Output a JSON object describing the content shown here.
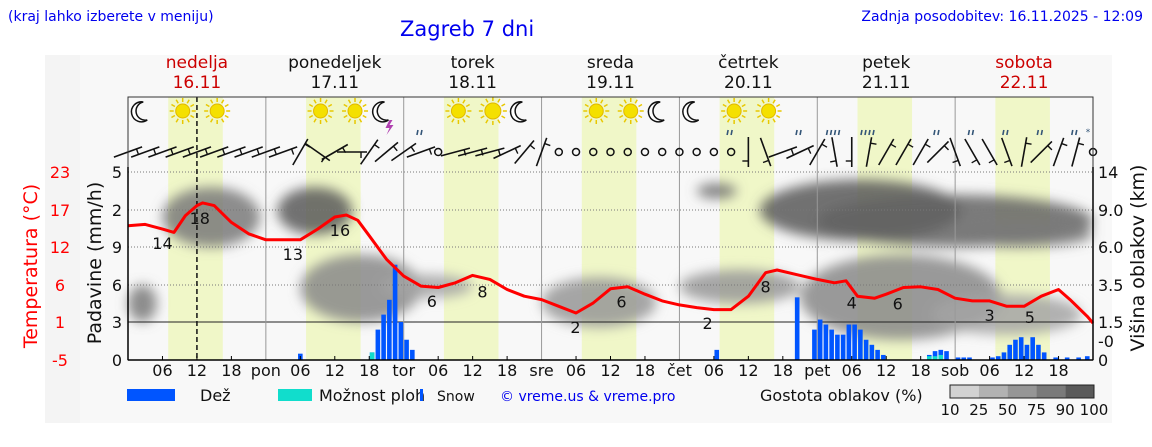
{
  "header": {
    "hint": "(kraj lahko izberete v meniju)",
    "title": "Zagreb 7 dni",
    "updated": "Zadnja posodobitev: 16.11.2025 - 12:09"
  },
  "colors": {
    "link_blue": "#0000ee",
    "temperature": "#ff0000",
    "rain": "#0055ff",
    "showers": "#11ddcc",
    "daylight": "#f0f7c8",
    "weekend_day": "#cc0000"
  },
  "days": [
    {
      "name": "nedelja",
      "date": "16.11",
      "weekend": true,
      "abbr": ""
    },
    {
      "name": "ponedeljek",
      "date": "17.11",
      "weekend": false,
      "abbr": "pon"
    },
    {
      "name": "torek",
      "date": "18.11",
      "weekend": false,
      "abbr": "tor"
    },
    {
      "name": "sreda",
      "date": "19.11",
      "weekend": false,
      "abbr": "sre"
    },
    {
      "name": "četrtek",
      "date": "20.11",
      "weekend": false,
      "abbr": "čet"
    },
    {
      "name": "petek",
      "date": "21.11",
      "weekend": false,
      "abbr": "pet"
    },
    {
      "name": "sobota",
      "date": "22.11",
      "weekend": true,
      "abbr": "sob"
    }
  ],
  "hour_ticks": [
    "06",
    "12",
    "18"
  ],
  "current_hour": 12,
  "chart_data": {
    "type": "meteogram",
    "x_range_hours": [
      0,
      168
    ],
    "temperature": {
      "axis_label": "Temperatura (°C)",
      "ticks": [
        "23",
        "17",
        "12",
        "6",
        "1",
        "-5"
      ],
      "ylim": [
        -5,
        23
      ],
      "hours": [
        0,
        3,
        6,
        8,
        10,
        12,
        13,
        15,
        18,
        21,
        24,
        27,
        30,
        33,
        36,
        38,
        40,
        42,
        45,
        48,
        51,
        54,
        57,
        60,
        63,
        66,
        69,
        72,
        75,
        78,
        81,
        84,
        87,
        90,
        93,
        96,
        99,
        102,
        105,
        108,
        111,
        113,
        116,
        120,
        123,
        125,
        127,
        130,
        132,
        135,
        138,
        141,
        144,
        147,
        150,
        153,
        156,
        159,
        162,
        164,
        167,
        168
      ],
      "values": [
        15.0,
        15.2,
        14.5,
        14.0,
        16.5,
        18.0,
        18.4,
        18.0,
        15.5,
        13.8,
        12.9,
        12.9,
        12.9,
        14.5,
        16.3,
        16.6,
        15.8,
        13.5,
        10.0,
        7.5,
        6.0,
        5.8,
        6.5,
        7.6,
        7.0,
        5.5,
        4.5,
        4.0,
        3.0,
        2.0,
        3.5,
        5.6,
        5.9,
        4.8,
        3.8,
        3.2,
        2.8,
        2.5,
        2.5,
        4.5,
        8.0,
        8.4,
        7.8,
        7.0,
        6.5,
        6.8,
        4.5,
        4.2,
        4.8,
        5.8,
        5.9,
        5.5,
        4.2,
        3.8,
        3.8,
        3.0,
        3.0,
        4.5,
        5.5,
        4.0,
        1.5,
        0.5
      ],
      "labels": [
        {
          "hour": 6,
          "text": "14"
        },
        {
          "hour": 12.5,
          "text": "18"
        },
        {
          "hour": 28.7,
          "text": "13"
        },
        {
          "hour": 36.9,
          "text": "16"
        },
        {
          "hour": 52.9,
          "text": "6"
        },
        {
          "hour": 61.7,
          "text": "8"
        },
        {
          "hour": 77.9,
          "text": "2"
        },
        {
          "hour": 85.9,
          "text": "6"
        },
        {
          "hour": 100.9,
          "text": "2"
        },
        {
          "hour": 111,
          "text": "8"
        },
        {
          "hour": 126,
          "text": "4"
        },
        {
          "hour": 134,
          "text": "6"
        },
        {
          "hour": 150,
          "text": "3"
        },
        {
          "hour": 157,
          "text": "5"
        }
      ]
    },
    "precipitation": {
      "axis_label": "Padavine (mm/h)",
      "ticks": [
        "5",
        "2",
        "9",
        "6",
        "3",
        "0"
      ],
      "tick_values": [
        5,
        2,
        0.9,
        0.6,
        0.3,
        0
      ],
      "bars": [
        {
          "hour": 30,
          "rain": 0.05,
          "showers": 0
        },
        {
          "hour": 42.5,
          "rain": 0.06,
          "showers": 0.06
        },
        {
          "hour": 43.5,
          "rain": 0.24,
          "showers": 0
        },
        {
          "hour": 44.5,
          "rain": 0.36,
          "showers": 0
        },
        {
          "hour": 45.5,
          "rain": 0.48,
          "showers": 0
        },
        {
          "hour": 46.5,
          "rain": 0.76,
          "showers": 0
        },
        {
          "hour": 47.5,
          "rain": 0.3,
          "showers": 0
        },
        {
          "hour": 48.5,
          "rain": 0.16,
          "showers": 0
        },
        {
          "hour": 49.5,
          "rain": 0.08,
          "showers": 0
        },
        {
          "hour": 102.5,
          "rain": 0.08,
          "showers": 0
        },
        {
          "hour": 116.5,
          "rain": 0.5,
          "showers": 0
        },
        {
          "hour": 119.5,
          "rain": 0.24,
          "showers": 0
        },
        {
          "hour": 120.5,
          "rain": 0.32,
          "showers": 0
        },
        {
          "hour": 121.5,
          "rain": 0.28,
          "showers": 0
        },
        {
          "hour": 122.5,
          "rain": 0.24,
          "showers": 0
        },
        {
          "hour": 123.5,
          "rain": 0.2,
          "showers": 0
        },
        {
          "hour": 124.5,
          "rain": 0.2,
          "showers": 0
        },
        {
          "hour": 125.5,
          "rain": 0.28,
          "showers": 0
        },
        {
          "hour": 126.5,
          "rain": 0.28,
          "showers": 0
        },
        {
          "hour": 127.5,
          "rain": 0.24,
          "showers": 0
        },
        {
          "hour": 128.5,
          "rain": 0.16,
          "showers": 0
        },
        {
          "hour": 129.5,
          "rain": 0.12,
          "showers": 0
        },
        {
          "hour": 130.5,
          "rain": 0.08,
          "showers": 0
        },
        {
          "hour": 131.5,
          "rain": 0.04,
          "showers": 0
        },
        {
          "hour": 139.5,
          "rain": 0.04,
          "showers": 0.03
        },
        {
          "hour": 140.5,
          "rain": 0.07,
          "showers": 0.03
        },
        {
          "hour": 141.5,
          "rain": 0.08,
          "showers": 0.04
        },
        {
          "hour": 142.5,
          "rain": 0.07,
          "showers": 0
        },
        {
          "hour": 144.5,
          "rain": 0.02,
          "showers": 0
        },
        {
          "hour": 145.5,
          "rain": 0.02,
          "showers": 0
        },
        {
          "hour": 146.5,
          "rain": 0.02,
          "showers": 0
        },
        {
          "hour": 150.5,
          "rain": 0.02,
          "showers": 0
        },
        {
          "hour": 151.5,
          "rain": 0.03,
          "showers": 0
        },
        {
          "hour": 152.5,
          "rain": 0.06,
          "showers": 0
        },
        {
          "hour": 153.5,
          "rain": 0.12,
          "showers": 0
        },
        {
          "hour": 154.5,
          "rain": 0.16,
          "showers": 0
        },
        {
          "hour": 155.5,
          "rain": 0.18,
          "showers": 0
        },
        {
          "hour": 156.5,
          "rain": 0.12,
          "showers": 0
        },
        {
          "hour": 157.5,
          "rain": 0.18,
          "showers": 0
        },
        {
          "hour": 158.5,
          "rain": 0.12,
          "showers": 0
        },
        {
          "hour": 159.5,
          "rain": 0.06,
          "showers": 0
        },
        {
          "hour": 161.5,
          "rain": 0.02,
          "showers": 0
        },
        {
          "hour": 163.5,
          "rain": 0.02,
          "showers": 0
        },
        {
          "hour": 165.5,
          "rain": 0.02,
          "showers": 0
        },
        {
          "hour": 167,
          "rain": 0.03,
          "showers": 0
        }
      ]
    },
    "cloud_height": {
      "axis_label": "Višina oblakov (km)",
      "ticks": [
        "14",
        "9.0",
        "6.0",
        "3.5",
        "1.5",
        "-0",
        "0"
      ],
      "tick_values": [
        14,
        9,
        6,
        3.5,
        1.5,
        0.7,
        0
      ],
      "cloud_regions": [
        {
          "hours": [
            6,
            23
          ],
          "km": [
            6,
            12
          ],
          "density": 75
        },
        {
          "hours": [
            26,
            39
          ],
          "km": [
            7,
            12
          ],
          "density": 90
        },
        {
          "hours": [
            30,
            51
          ],
          "km": [
            1.5,
            5.5
          ],
          "density": 60
        },
        {
          "hours": [
            0,
            5
          ],
          "km": [
            1.5,
            3.5
          ],
          "density": 75
        },
        {
          "hours": [
            44,
            60
          ],
          "km": [
            2.8,
            4.2
          ],
          "density": 40
        },
        {
          "hours": [
            72,
            92
          ],
          "km": [
            1.3,
            4
          ],
          "density": 50
        },
        {
          "hours": [
            99,
            106
          ],
          "km": [
            10.5,
            12.5
          ],
          "density": 80
        },
        {
          "hours": [
            96,
            117
          ],
          "km": [
            2.5,
            4.5
          ],
          "density": 50
        },
        {
          "hours": [
            110,
            145
          ],
          "km": [
            6.5,
            13
          ],
          "density": 90
        },
        {
          "hours": [
            120,
            168
          ],
          "km": [
            6,
            11
          ],
          "density": 85
        },
        {
          "hours": [
            143,
            168
          ],
          "km": [
            6,
            8
          ],
          "density": 75
        },
        {
          "hours": [
            117,
            152
          ],
          "km": [
            0.8,
            5.5
          ],
          "density": 60
        },
        {
          "hours": [
            140,
            166
          ],
          "km": [
            1,
            3
          ],
          "density": 40
        }
      ]
    },
    "density_legend": {
      "label": "Gostota oblakov (%)",
      "values": [
        "10",
        "25",
        "50",
        "75",
        "90",
        "100"
      ],
      "colors": [
        "#d2d2d2",
        "#b2b2b2",
        "#969696",
        "#7a7a7a",
        "#5a5a5a"
      ]
    },
    "weather_icons": [
      "moon-cloud",
      "sun-cloud",
      "sun-cloud",
      "cloudy",
      "cloudy",
      "sun-cloud",
      "sun-cloud",
      "moon-thunder",
      "cloud-drizzle",
      "sun-cloud",
      "sun-small-cloud",
      "moon-cloud",
      "cloudy",
      "sun-cloud",
      "sun-cloud",
      "moon-cloud",
      "moon-cloud",
      "sun-cloud-drizzle",
      "sun-cloud",
      "cloud-rain",
      "cloud-heavy-rain",
      "cloud-heavy-rain",
      "cloudy",
      "cloud-rain",
      "cloud-rain",
      "cloud-rain",
      "cloud-rain",
      "cloud-sleet"
    ],
    "wind_barb_tilts": [
      -20,
      -20,
      -20,
      -20,
      -20,
      -20,
      -20,
      -20,
      -20,
      -20,
      -60,
      35,
      -30,
      0,
      -55,
      -40,
      -35,
      -20,
      "calm",
      -15,
      -15,
      -15,
      -25,
      -50,
      -70,
      "calm",
      "calm",
      "calm",
      "calm",
      "calm",
      "calm",
      "calm",
      "calm",
      "calm",
      "calm",
      "calm",
      90,
      70,
      -20,
      -25,
      -60,
      80,
      90,
      -80,
      -60,
      -60,
      -60,
      -45,
      70,
      60,
      60,
      70,
      -80,
      -45,
      -70,
      -75,
      "calm"
    ]
  },
  "legend": {
    "rain": "Dež",
    "showers": "Možnost ploh",
    "snow": "Snow",
    "credit": "© vreme.us & vreme.pro"
  }
}
